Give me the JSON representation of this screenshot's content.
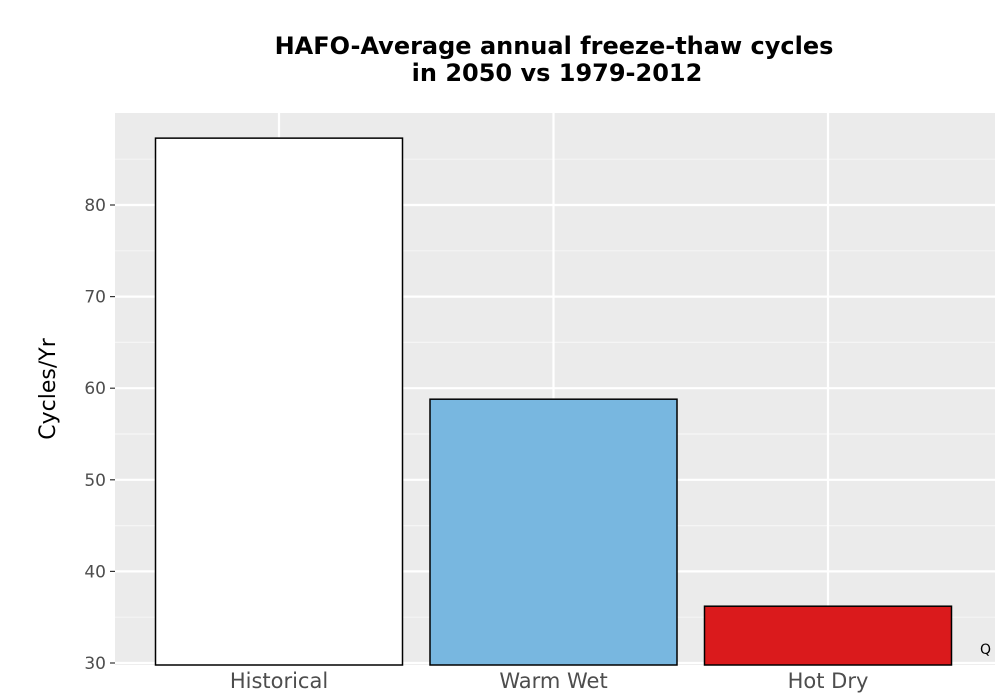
{
  "chart_data": {
    "type": "bar",
    "title_lines": [
      "HAFO-Average annual freeze-thaw cycles",
      "in 2050 vs 1979-2012"
    ],
    "xlabel": "",
    "ylabel": "Cycles/Yr",
    "categories": [
      "Historical",
      "Warm Wet",
      "Hot Dry"
    ],
    "values": [
      87.3,
      58.8,
      36.2
    ],
    "colors": [
      "#ffffff",
      "#78b7e0",
      "#da1a1c"
    ],
    "ylim": [
      30,
      90
    ],
    "yticks": [
      30,
      40,
      50,
      60,
      70,
      80
    ],
    "grid": true,
    "panel_background": "#ebebeb",
    "legend": "none",
    "corner_note": "Q"
  }
}
